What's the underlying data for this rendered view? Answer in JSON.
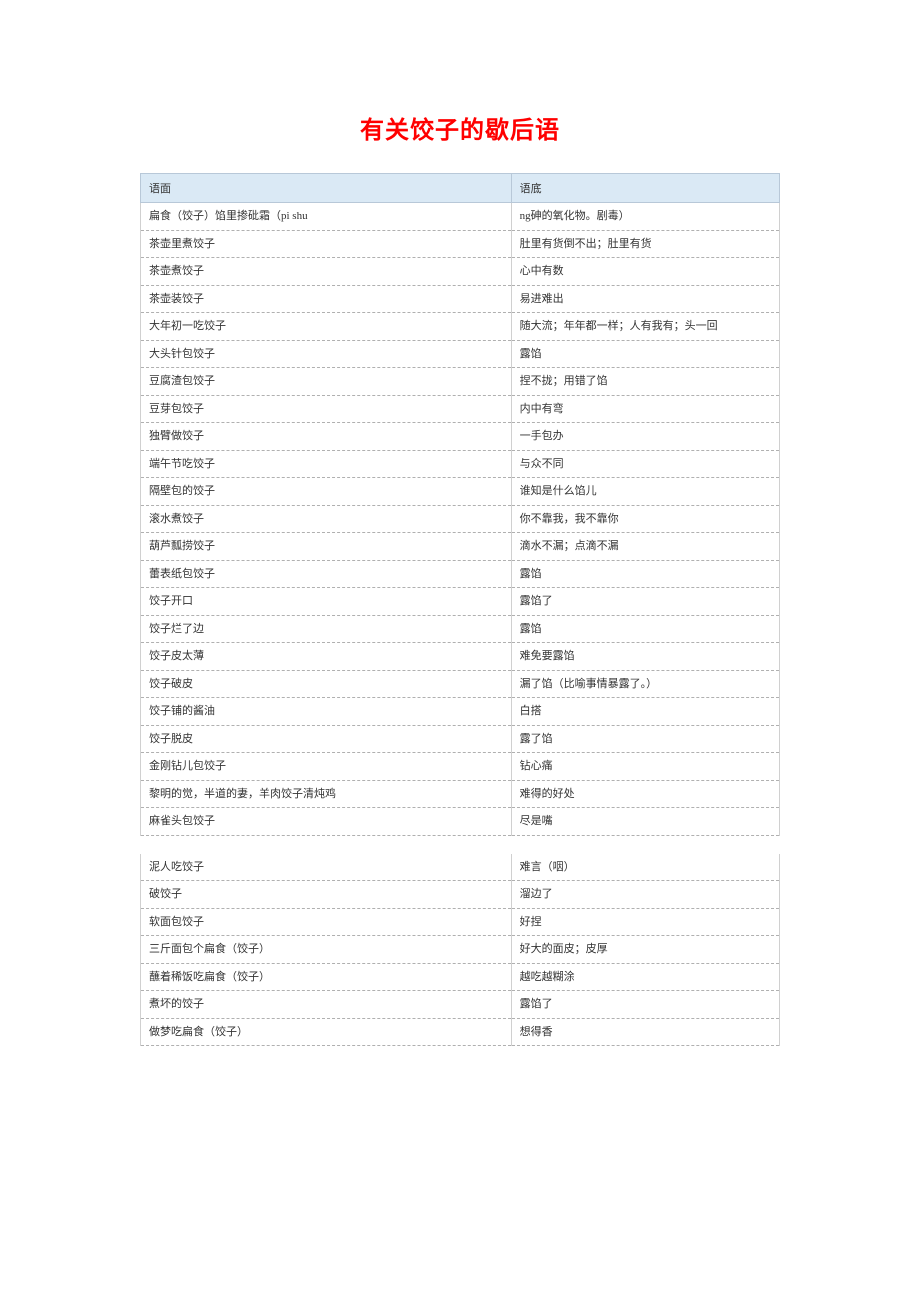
{
  "title": "有关饺子的歇后语",
  "table1": {
    "headers": [
      "语面",
      "语底"
    ],
    "rows": [
      [
        "扁食（饺子）馅里掺砒霜（pi shu",
        "ng砷的氧化物。剧毒）"
      ],
      [
        "茶壶里煮饺子",
        "肚里有货倒不出；肚里有货"
      ],
      [
        "茶壶煮饺子",
        "心中有数"
      ],
      [
        "茶壶装饺子",
        "易进难出"
      ],
      [
        "大年初一吃饺子",
        "随大流；年年都一样；人有我有；头一回"
      ],
      [
        "大头针包饺子",
        "露馅"
      ],
      [
        "豆腐渣包饺子",
        "捏不拢；用错了馅"
      ],
      [
        "豆芽包饺子",
        "内中有弯"
      ],
      [
        "独臂做饺子",
        "一手包办"
      ],
      [
        "端午节吃饺子",
        "与众不同"
      ],
      [
        "隔壁包的饺子",
        "谁知是什么馅儿"
      ],
      [
        "滚水煮饺子",
        "你不靠我，我不靠你"
      ],
      [
        "葫芦瓢捞饺子",
        "滴水不漏；点滴不漏"
      ],
      [
        "蕾表纸包饺子",
        "露馅"
      ],
      [
        "饺子开口",
        "露馅了"
      ],
      [
        "饺子烂了边",
        "露馅"
      ],
      [
        "饺子皮太薄",
        "难免要露馅"
      ],
      [
        "饺子破皮",
        "漏了馅（比喻事情暴露了。）"
      ],
      [
        "饺子铺的酱油",
        "白搭"
      ],
      [
        "饺子脱皮",
        "露了馅"
      ],
      [
        "金刚钻儿包饺子",
        "钻心痛"
      ],
      [
        "黎明的觉，半道的妻，羊肉饺子清炖鸡",
        "难得的好处"
      ],
      [
        "麻雀头包饺子",
        "尽是嘴"
      ]
    ]
  },
  "table2": {
    "rows": [
      [
        "泥人吃饺子",
        "难言（咽）"
      ],
      [
        "破饺子",
        "溜边了"
      ],
      [
        "软面包饺子",
        "好捏"
      ],
      [
        "三斤面包个扁食（饺子）",
        "好大的面皮；皮厚"
      ],
      [
        "蘸着稀饭吃扁食（饺子）",
        "越吃越糊涂"
      ],
      [
        "煮坏的饺子",
        "露馅了"
      ],
      [
        "做梦吃扁食（饺子）",
        "想得香"
      ]
    ]
  }
}
